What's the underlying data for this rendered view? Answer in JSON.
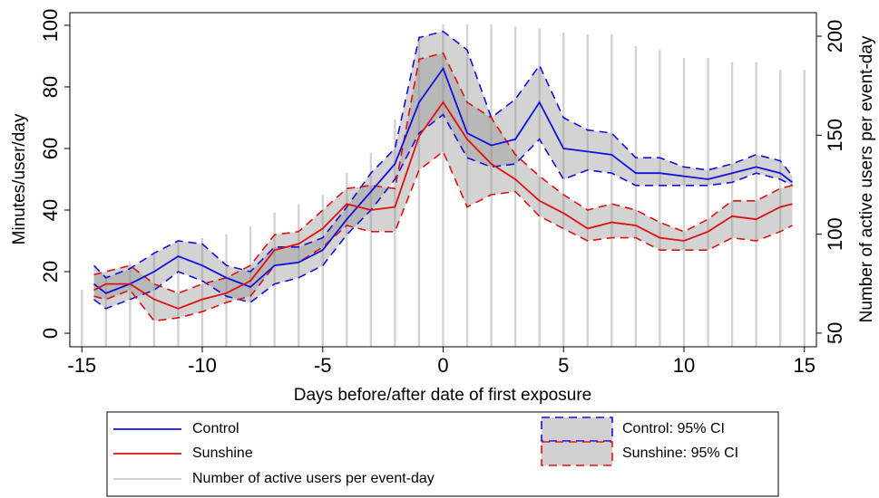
{
  "chart_data": {
    "type": "line",
    "xlabel": "Days before/after date of first exposure",
    "ylabel": "Minutes/user/day",
    "y2label": "Number of active users per event-day",
    "xlim": [
      -15.5,
      15.5
    ],
    "xticks": [
      -15,
      -10,
      -5,
      0,
      5,
      10,
      15
    ],
    "ylim": [
      -4.4,
      104.1
    ],
    "yticks": [
      0,
      20,
      40,
      60,
      80,
      100
    ],
    "y2lim": [
      43.1,
      211.9
    ],
    "y2ticks": [
      50,
      100,
      150,
      200
    ],
    "x": [
      -14.5,
      -14,
      -13,
      -12,
      -11,
      -10,
      -9,
      -8,
      -7,
      -6,
      -5,
      -4,
      -3,
      -2,
      -1,
      0,
      1,
      2,
      3,
      4,
      5,
      6,
      7,
      8,
      9,
      10,
      11,
      12,
      13,
      14,
      14.5
    ],
    "series": [
      {
        "name": "Control",
        "color": "#1010e0",
        "values": [
          16,
          13,
          16,
          20,
          25,
          22,
          18,
          15,
          22,
          23,
          27,
          37,
          46,
          55,
          75,
          86,
          65,
          61,
          63,
          75,
          60,
          59,
          58,
          52,
          52,
          51,
          50,
          52,
          54,
          52,
          49
        ]
      },
      {
        "name": "Sunshine",
        "color": "#e01010",
        "values": [
          14,
          16,
          16,
          11,
          8,
          11,
          13,
          17,
          27,
          29,
          34,
          42,
          40,
          41,
          64,
          75,
          63,
          55,
          50,
          43,
          39,
          34,
          36,
          35,
          31,
          30,
          33,
          38,
          37,
          41,
          42
        ]
      }
    ],
    "bands": [
      {
        "name": "Control: 95% CI",
        "color": "#1010e0",
        "lower": [
          11,
          8,
          11,
          14,
          20,
          17,
          12,
          10,
          16,
          18,
          22,
          32,
          40,
          50,
          65,
          71,
          57,
          54,
          55,
          63,
          50,
          53,
          52,
          48,
          48,
          48,
          48,
          49,
          52,
          50,
          48
        ],
        "upper": [
          22,
          18,
          21,
          26,
          30,
          29,
          22,
          20,
          28,
          28,
          31,
          41,
          52,
          60,
          96,
          98,
          92,
          70,
          76,
          87,
          70,
          66,
          65,
          57,
          57,
          54,
          53,
          55,
          58,
          56,
          51
        ]
      },
      {
        "name": "Sunshine: 95% CI",
        "color": "#e01010",
        "lower": [
          12,
          11,
          14,
          4,
          5,
          7,
          10,
          12,
          22,
          23,
          28,
          35,
          33,
          33,
          53,
          59,
          41,
          45,
          46,
          38,
          34,
          30,
          31,
          31,
          27,
          27,
          27,
          31,
          30,
          33,
          35
        ],
        "upper": [
          19,
          20,
          22,
          16,
          13,
          16,
          18,
          22,
          32,
          33,
          40,
          47,
          48,
          47,
          89,
          91,
          75,
          70,
          58,
          51,
          45,
          40,
          42,
          40,
          36,
          33,
          37,
          43,
          43,
          47,
          48
        ]
      }
    ],
    "bars": {
      "name": "Number of active users per event-day",
      "color": "#d3d3d3",
      "axis": "y2",
      "x": [
        -15,
        -14,
        -13,
        -12,
        -11,
        -10,
        -9,
        -8,
        -7,
        -6,
        -5,
        -4,
        -3,
        -2,
        -1,
        0,
        1,
        2,
        3,
        4,
        5,
        6,
        7,
        8,
        9,
        10,
        11,
        12,
        13,
        14,
        15
      ],
      "values": [
        72,
        79,
        86,
        91,
        96,
        98,
        100,
        104,
        111,
        115,
        120,
        131,
        141,
        158,
        200,
        206,
        206,
        206,
        205,
        204,
        202,
        201,
        201,
        195,
        193,
        189,
        189,
        187,
        187,
        183,
        183
      ]
    }
  }
}
